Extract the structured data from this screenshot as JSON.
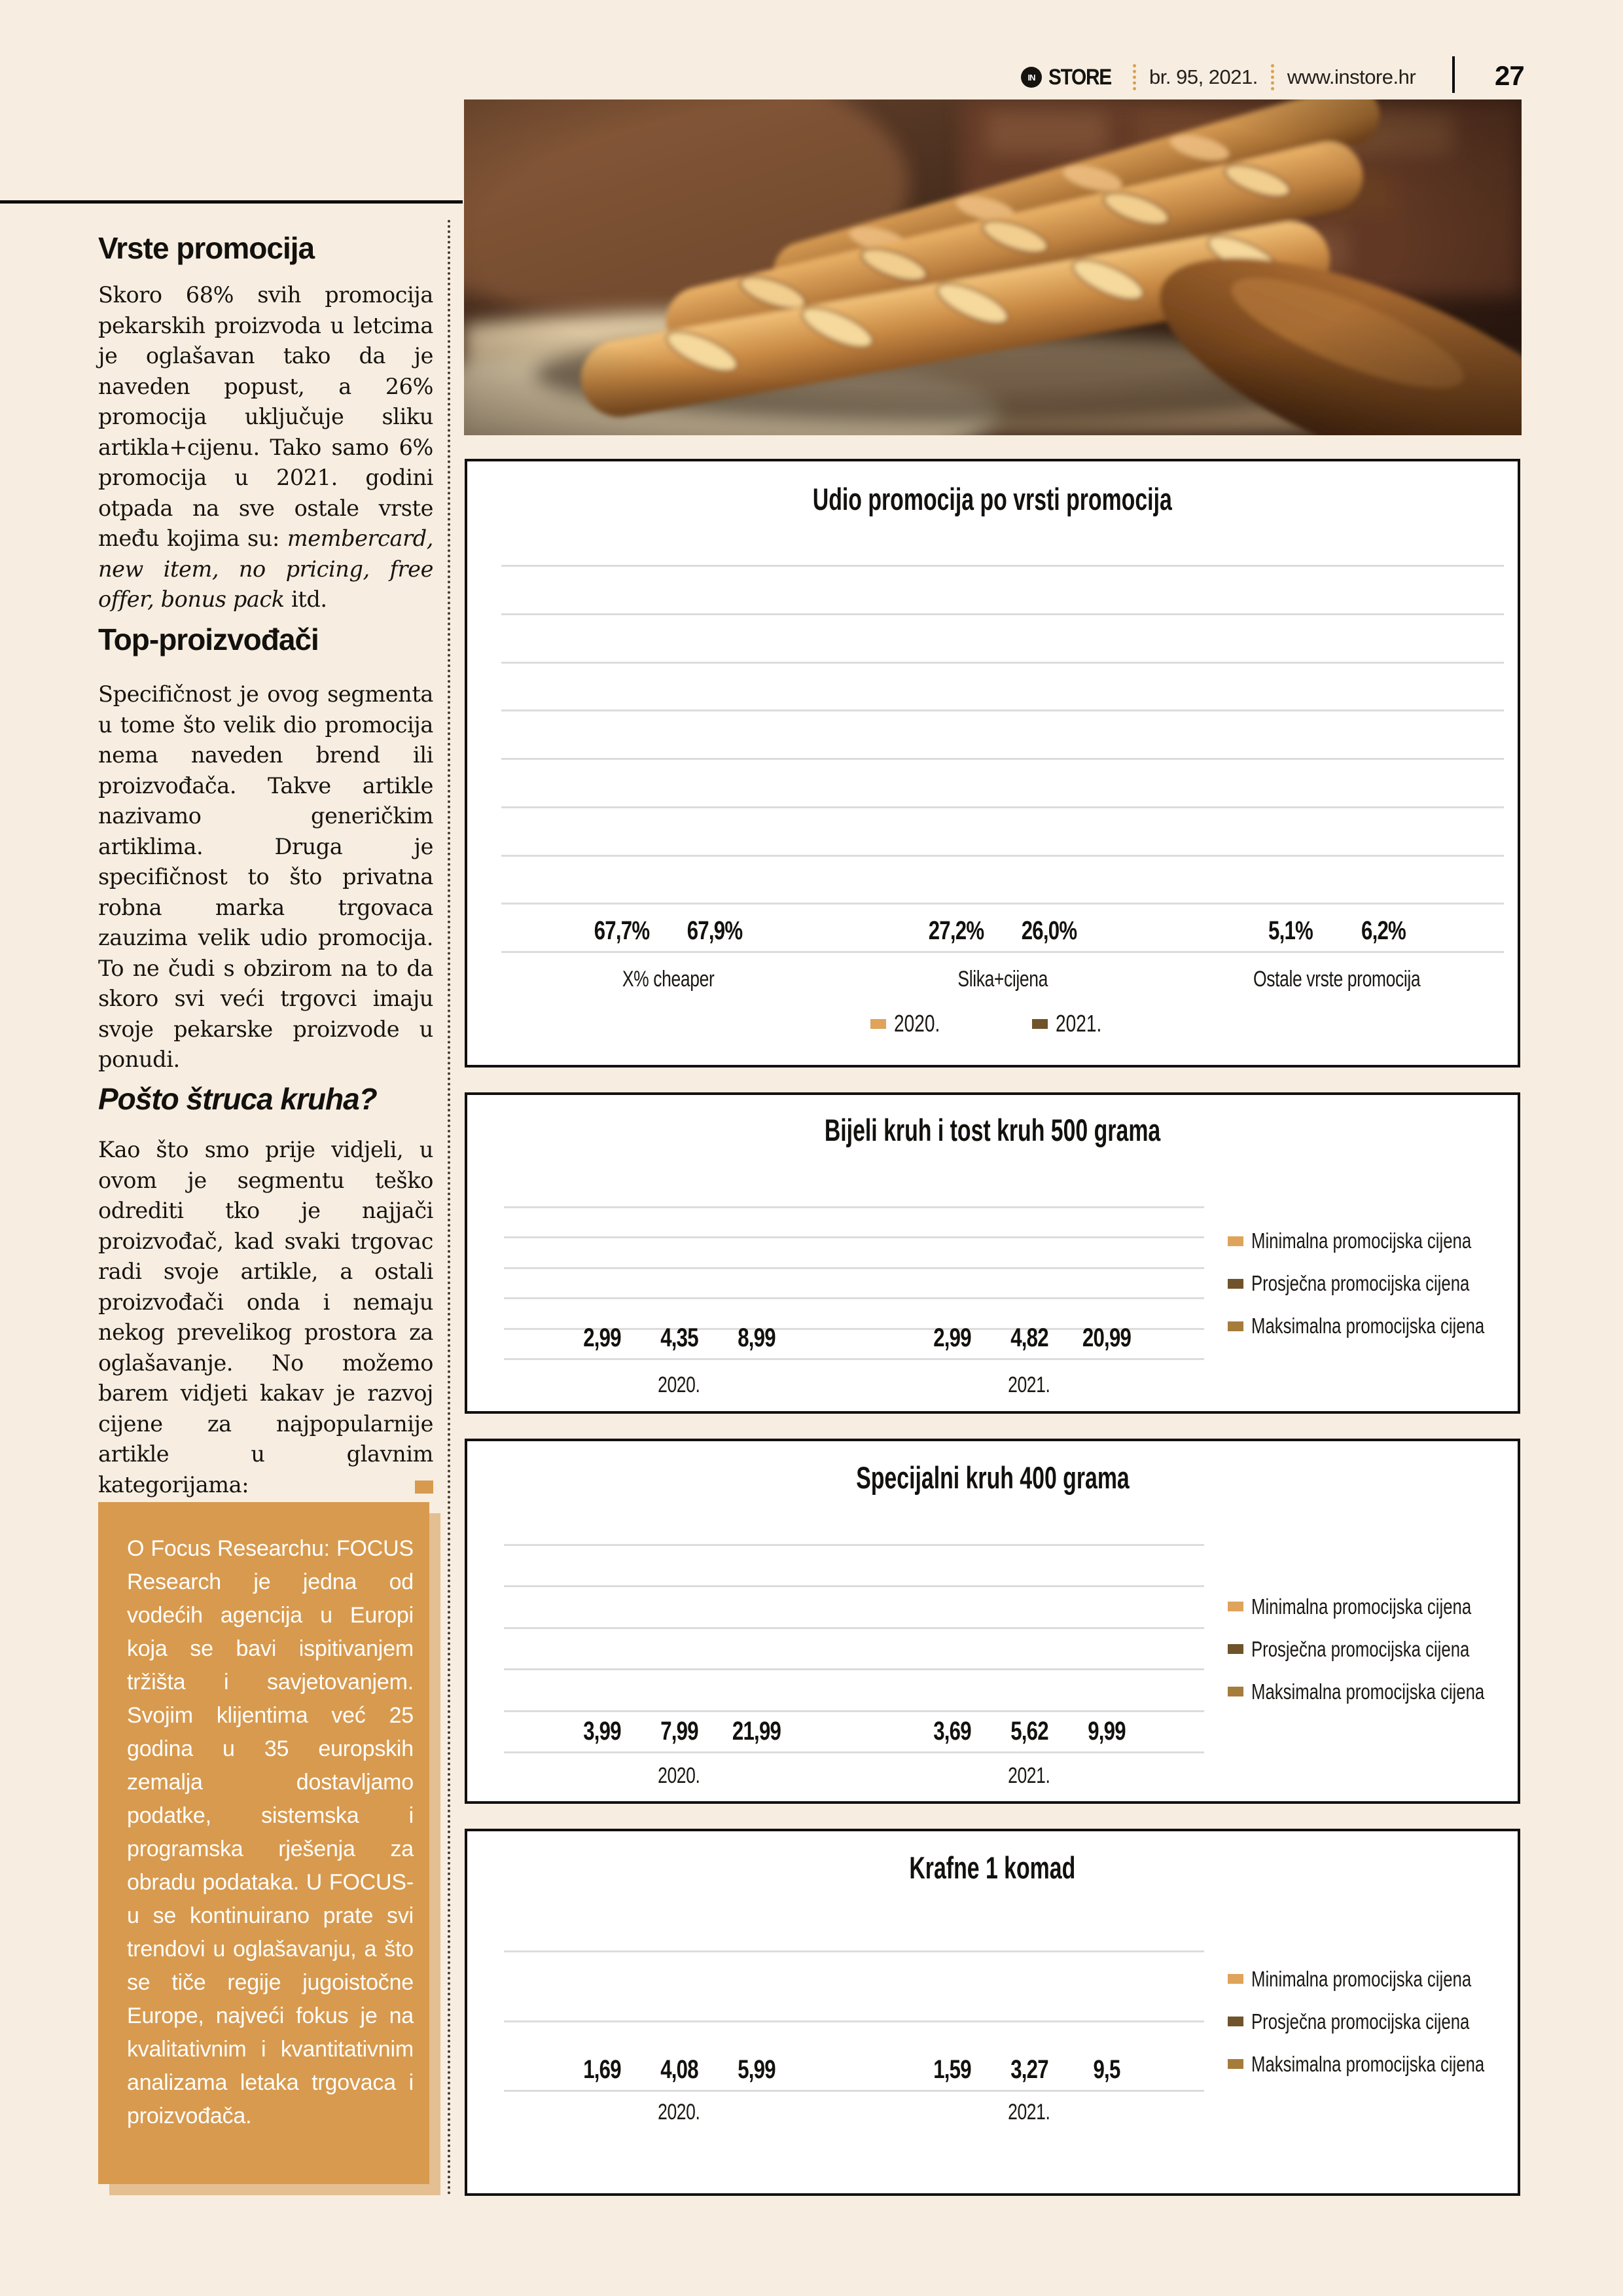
{
  "header": {
    "brand_prefix": "IN",
    "brand": "STORE",
    "issue": "br. 95, 2021.",
    "site": "www.instore.hr",
    "page_number": "27"
  },
  "article": {
    "s1_heading": "Vrste promocija",
    "s1_p1": "Skoro 68% svih promocija pekarskih proizvoda u letcima je oglašavan tako da je naveden popust, a 26% promocija uključuje sliku artikla+cijenu. Tako samo 6% promocija u 2021. godini otpada na sve ostale vrste među kojima su: ",
    "s1_p1_italic": "membercard, new item, no pricing, free offer, bonus pack",
    "s1_p1_end": " itd.",
    "s2_heading": "Top-proizvođači",
    "s2_p1": "Specifičnost je ovog segmenta u tome što velik dio promocija nema naveden brend ili proizvođača. Takve artikle nazivamo generičkim artiklima. Druga je specifičnost to što privatna robna marka trgovaca zauzima velik udio promocija. To ne čudi s obzirom na to da skoro svi veći trgovci imaju svoje pekarske proizvode u ponudi.",
    "s3_heading": "Pošto štruca kruha?",
    "s3_p1": "Kao što smo prije vidjeli, u ovom je segmentu teško odrediti tko je najjači proizvođač, kad svaki trgovac radi svoje artikle, a ostali proizvođači onda i nemaju nekog prevelikog prostora za oglašavanje. No možemo barem vidjeti kakav je razvoj cijene za najpopularnije artikle u glavnim kategorijama:"
  },
  "infobox": {
    "text": "O Focus Researchu: FOCUS Research je jedna od vodećih agencija u Europi koja se bavi ispitivanjem tržišta i savjetovanjem. Svojim klijentima već 25 godina u 35 europskih zemalja dostavljamo podatke, sistemska i programska rješenja za obradu podataka. U FOCUS-u se kontinuirano prate svi trendovi u oglašavanju, a što se tiče regije jugoistočne Europe, najveći fokus je na kvalitativnim i kvantitativnim analizama letaka trgovaca i proizvođača."
  },
  "colors": {
    "page_bg": "#f7eee1",
    "tan": "#dfa35b",
    "dark_brown": "#70532a",
    "gold_brown": "#a67c3b",
    "info_box_bg": "#d89a4e",
    "info_box_shadow": "#e4bf92",
    "separator_dots": "#d9a050",
    "gridline": "#dcdcdc"
  },
  "chart_data": [
    {
      "type": "bar",
      "title": "Udio promocija po vrsti promocija",
      "categories": [
        "X% cheaper",
        "Slika+cijena",
        "Ostale vrste promocija"
      ],
      "series": [
        {
          "name": "2020.",
          "values": [
            67.7,
            27.2,
            5.1
          ],
          "labels": [
            "67,7%",
            "27,2%",
            "5,1%"
          ]
        },
        {
          "name": "2021.",
          "values": [
            67.9,
            26.0,
            6.2
          ],
          "labels": [
            "67,9%",
            "26,0%",
            "6,2%"
          ]
        }
      ],
      "colors": [
        "#dfa35b",
        "#70532a"
      ],
      "ylim": [
        0,
        80
      ],
      "grid_step": 10,
      "grid": true,
      "legend_position": "bottom",
      "xlabel": "",
      "ylabel": ""
    },
    {
      "type": "bar",
      "title": "Bijeli kruh i tost kruh 500 grama",
      "categories": [
        "2020.",
        "2021."
      ],
      "series": [
        {
          "name": "Minimalna promocijska cijena",
          "values": [
            2.99,
            2.99
          ],
          "labels": [
            "2,99",
            "2,99"
          ]
        },
        {
          "name": "Prosječna promocijska cijena",
          "values": [
            4.35,
            4.82
          ],
          "labels": [
            "4,35",
            "4,82"
          ]
        },
        {
          "name": "Maksimalna promocijska cijena",
          "values": [
            8.99,
            20.99
          ],
          "labels": [
            "8,99",
            "20,99"
          ]
        }
      ],
      "colors": [
        "#dfa35b",
        "#70532a",
        "#a67c3b"
      ],
      "ylim": [
        0,
        25
      ],
      "grid_step": 5,
      "grid": true,
      "legend_position": "right",
      "xlabel": "",
      "ylabel": ""
    },
    {
      "type": "bar",
      "title": "Specijalni kruh 400 grama",
      "categories": [
        "2020.",
        "2021."
      ],
      "series": [
        {
          "name": "Minimalna promocijska cijena",
          "values": [
            3.99,
            3.69
          ],
          "labels": [
            "3,99",
            "3,69"
          ]
        },
        {
          "name": "Prosječna promocijska cijena",
          "values": [
            7.99,
            5.62
          ],
          "labels": [
            "7,99",
            "5,62"
          ]
        },
        {
          "name": "Maksimalna promocijska cijena",
          "values": [
            21.99,
            9.99
          ],
          "labels": [
            "21,99",
            "9,99"
          ]
        }
      ],
      "colors": [
        "#dfa35b",
        "#70532a",
        "#a67c3b"
      ],
      "ylim": [
        0,
        25
      ],
      "grid_step": 5,
      "grid": true,
      "legend_position": "right",
      "xlabel": "",
      "ylabel": ""
    },
    {
      "type": "bar",
      "title": "Krafne 1 komad",
      "categories": [
        "2020.",
        "2021."
      ],
      "series": [
        {
          "name": "Minimalna promocijska cijena",
          "values": [
            1.69,
            1.59
          ],
          "labels": [
            "1,69",
            "1,59"
          ]
        },
        {
          "name": "Prosječna promocijska cijena",
          "values": [
            4.08,
            3.27
          ],
          "labels": [
            "4,08",
            "3,27"
          ]
        },
        {
          "name": "Maksimalna promocijska cijena",
          "values": [
            5.99,
            9.5
          ],
          "labels": [
            "5,99",
            "9,5"
          ]
        }
      ],
      "colors": [
        "#dfa35b",
        "#70532a",
        "#a67c3b"
      ],
      "ylim": [
        0,
        10
      ],
      "grid_step": 5,
      "grid": true,
      "legend_position": "right",
      "xlabel": "",
      "ylabel": ""
    }
  ]
}
